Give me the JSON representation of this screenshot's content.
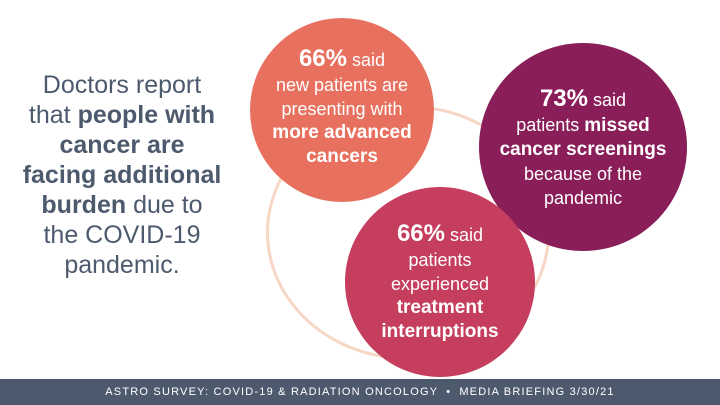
{
  "headline": {
    "part1": "Doctors report that ",
    "bold1": "people with cancer are facing additional burden",
    "part2": " due to the COVID-19 pandemic."
  },
  "bubbles": [
    {
      "percent": "66%",
      "said": " said",
      "lines": [
        "new patients are",
        "presenting with"
      ],
      "bold_lines": [
        "more advanced",
        "cancers"
      ],
      "color": "#e8705f"
    },
    {
      "percent": "73%",
      "said": " said",
      "line_prefix": "patients ",
      "bold_inline": "missed",
      "bold_lines": [
        "cancer screenings"
      ],
      "lines_after": [
        "because of the",
        "pandemic"
      ],
      "color": "#8a1e59"
    },
    {
      "percent": "66%",
      "said": " said",
      "lines": [
        "patients",
        "experienced"
      ],
      "bold_lines": [
        "treatment",
        "interruptions"
      ],
      "color": "#c53e5d"
    }
  ],
  "footer": {
    "left": "ASTRO SURVEY: COVID-19 & RADIATION ONCOLOGY",
    "separator": "•",
    "right": "MEDIA BRIEFING 3/30/21"
  },
  "colors": {
    "text_slate": "#4d5a6e",
    "ring": "#f6d6c4",
    "footer_bg": "#4d5a6e"
  }
}
